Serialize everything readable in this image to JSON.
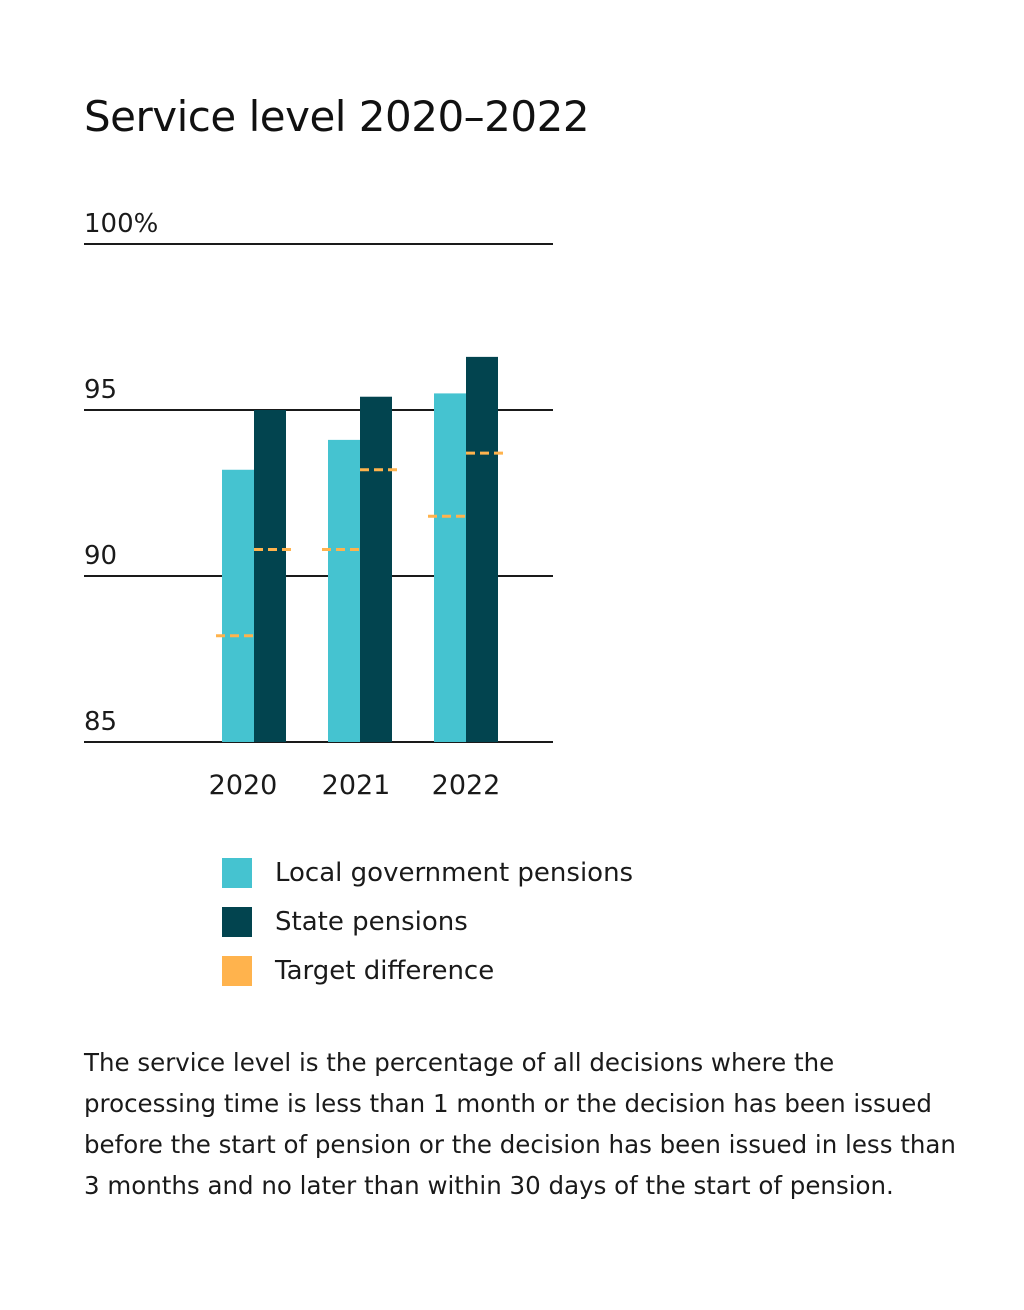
{
  "title": "Service level 2020–2022",
  "chart_data": {
    "type": "bar",
    "categories": [
      "2020",
      "2021",
      "2022"
    ],
    "series": [
      {
        "name": "Local government pensions",
        "values": [
          93.2,
          94.1,
          95.5
        ]
      },
      {
        "name": "State pensions",
        "values": [
          95.0,
          95.4,
          96.6
        ]
      }
    ],
    "targets": [
      {
        "name": "Target difference",
        "values": [
          [
            88.2,
            90.8
          ],
          [
            90.8,
            93.2
          ],
          [
            91.8,
            93.7
          ]
        ]
      }
    ],
    "ytick_labels": [
      "100%",
      "95",
      "90",
      "85"
    ],
    "yticks": [
      100,
      95,
      90,
      85
    ],
    "ylim": [
      85,
      100
    ],
    "grid": true,
    "legend_position": "bottom",
    "colors": {
      "local": "#45C3D0",
      "state": "#02444F",
      "target": "#FFB34D",
      "axis": "#1a1a1a"
    }
  },
  "legend": [
    {
      "label": "Local government pensions",
      "color": "#45C3D0"
    },
    {
      "label": "State pensions",
      "color": "#02444F"
    },
    {
      "label": "Target difference",
      "color": "#FFB34D"
    }
  ],
  "note": "The service level is the percentage of all decisions where the processing time is less than 1 month or the decision has been issued before the start of pension or the decision has been issued in less than 3 months and no later than within 30 days of the start of pension."
}
